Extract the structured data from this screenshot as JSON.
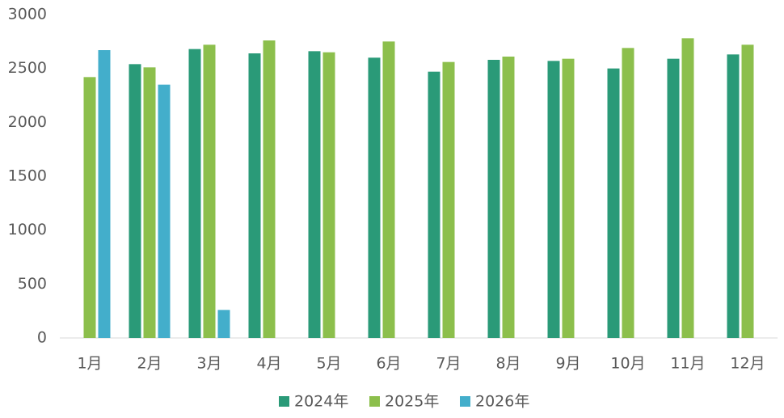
{
  "chart_data": {
    "type": "bar",
    "categories": [
      "1月",
      "2月",
      "3月",
      "4月",
      "5月",
      "6月",
      "7月",
      "8月",
      "9月",
      "10月",
      "11月",
      "12月"
    ],
    "series": [
      {
        "name": "2024年",
        "color": "#2a9a78",
        "values": [
          null,
          2540,
          2680,
          2640,
          2660,
          2600,
          2470,
          2580,
          2570,
          2500,
          2590,
          2630
        ]
      },
      {
        "name": "2025年",
        "color": "#8cbf4c",
        "values": [
          2420,
          2510,
          2720,
          2760,
          2650,
          2750,
          2560,
          2610,
          2590,
          2690,
          2780,
          2720
        ]
      },
      {
        "name": "2026年",
        "color": "#43aecb",
        "values": [
          2670,
          2350,
          260,
          null,
          null,
          null,
          null,
          null,
          null,
          null,
          null,
          null
        ]
      }
    ],
    "ylim": [
      0,
      3000
    ],
    "yticks": [
      0,
      500,
      1000,
      1500,
      2000,
      2500,
      3000
    ],
    "grid": false,
    "legend": "bottom"
  }
}
